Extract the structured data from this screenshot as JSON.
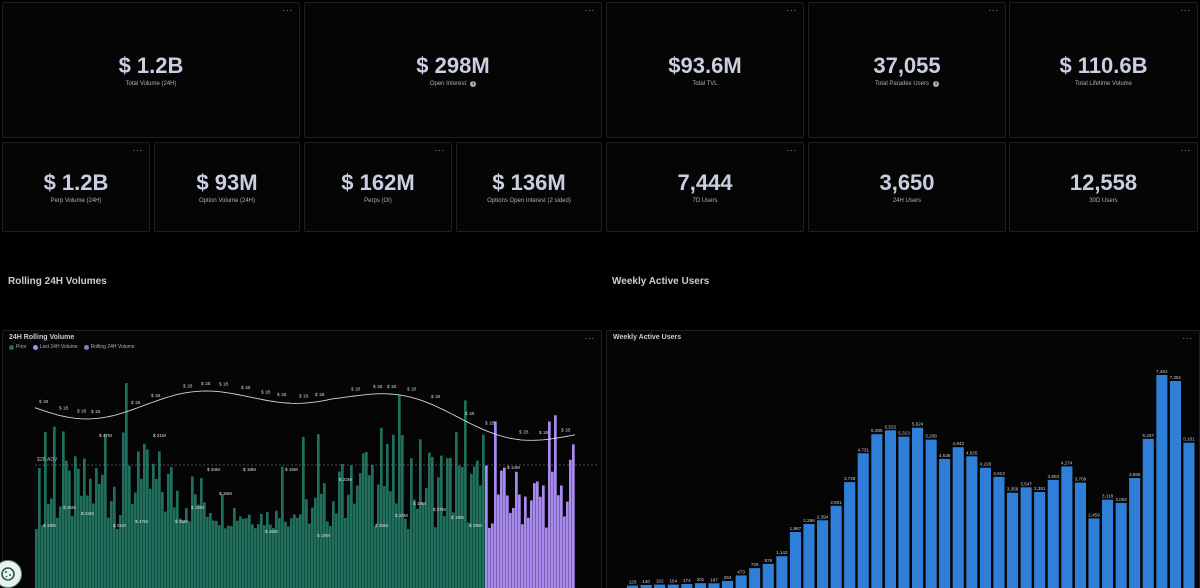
{
  "kpis_top": [
    {
      "value": "$ 1.2B",
      "label": "Total Volume (24H)",
      "info": false
    },
    {
      "value": "$ 298M",
      "label": "Open Interest",
      "info": true
    },
    {
      "value": "$93.6M",
      "label": "Total TVL",
      "info": false
    },
    {
      "value": "37,055",
      "label": "Total Paradex Users",
      "info": true
    },
    {
      "value": "$ 110.6B",
      "label": "Total Lifetime Volume",
      "info": false
    }
  ],
  "kpis_bottom": [
    {
      "value": "$ 1.2B",
      "label": "Perp Volume (24H)"
    },
    {
      "value": "$ 93M",
      "label": "Option Volume (24H)"
    },
    {
      "value": "$ 162M",
      "label": "Perps (OI)"
    },
    {
      "value": "$ 136M",
      "label": "Options Open Interest (2 sided)"
    },
    {
      "value": "7,444",
      "label": "7D Users"
    },
    {
      "value": "3,650",
      "label": "24H Users"
    },
    {
      "value": "12,558",
      "label": "30D Users"
    }
  ],
  "menu_dots": "...",
  "info_symbol": "i",
  "sections": {
    "rolling_title": "Rolling 24H Volumes",
    "weekly_title": "Weekly Active Users"
  },
  "rolling_chart": {
    "title": "24H Rolling Volume",
    "legend": [
      {
        "name": "Prior",
        "color": "#1f6f5c"
      },
      {
        "name": "Last 24H Volume",
        "color": "#a98bf0"
      },
      {
        "name": "Rolling 24H Volume",
        "color": "#7b7fd6"
      }
    ],
    "adv_label": "$2B ADV",
    "line_label": "$ 1B",
    "bar_labels": [
      "$ 19M",
      "$ 25M",
      "$ 22M",
      "$ 47M",
      "$ 21M",
      "$ 47M",
      "$ 21M",
      "$ 25M",
      "$ 19M",
      "$ 34M",
      "$ 16M",
      "$ 18M",
      "$ 26M",
      "$ 16M",
      "$ 19M",
      "$ 22M",
      "$ 26M",
      "$ 22M",
      "$ 19M",
      "$ 27M",
      "$ 19M",
      "$ 28M",
      "$ 14M"
    ]
  },
  "weekly_chart": {
    "title": "Weekly Active Users",
    "bar_color": "#2f7ed8",
    "chart_data": {
      "type": "bar",
      "values": [
        120,
        140,
        152,
        154,
        174,
        201,
        197,
        284,
        473,
        729,
        876,
        1142,
        1987,
        2266,
        2394,
        2901,
        3728,
        4731,
        5395,
        5532,
        5313,
        5624,
        5208,
        4535,
        4942,
        4625,
        4228,
        3913,
        3358,
        3547,
        3381,
        3803,
        4274,
        3709,
        2459,
        3118,
        3002,
        3865,
        5237,
        7462,
        7251,
        5101
      ],
      "labels": [
        "",
        "",
        "",
        "",
        "",
        "",
        "",
        "284",
        "473",
        "729",
        "876",
        "1,142",
        "1,987",
        "2,266",
        "2,394",
        "2,901",
        "3,728",
        "4,731",
        "5,395",
        "5,532",
        "5,313",
        "5,624",
        "5,208",
        "4,535",
        "4,942",
        "4,625",
        "4,228",
        "3,913",
        "3,358",
        "3,547",
        "3,381",
        "3,803",
        "4,274",
        "3,709",
        "2,459",
        "3,118",
        "3,002",
        "3,865",
        "5,237",
        "7,462",
        "7,251",
        "5,101"
      ],
      "bottom_labels": [
        "120",
        "140",
        "152",
        "154",
        "174",
        "201",
        "197"
      ]
    }
  }
}
